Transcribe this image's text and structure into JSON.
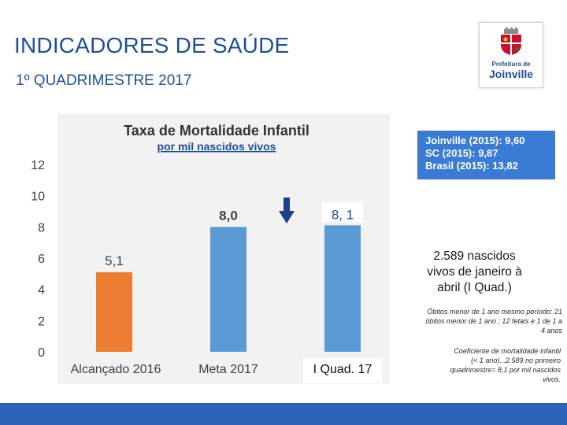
{
  "header": {
    "title": "INDICADORES DE SAÚDE",
    "subtitle": "1º QUADRIMESTRE 2017"
  },
  "logo": {
    "line1": "Prefeitura de",
    "line2": "Joinville"
  },
  "chart_data": {
    "type": "bar",
    "title": "Taxa de Mortalidade Infantil",
    "subtitle": "por mil nascidos  vivos",
    "categories": [
      "Alcançado 2016",
      "Meta 2017",
      "I Quad. 17"
    ],
    "values": [
      5.1,
      8.0,
      8.1
    ],
    "data_labels": [
      "5,1",
      "8,0",
      "8, 1"
    ],
    "bar_colors": [
      "#ed7d31",
      "#5b9bd5",
      "#5b9bd5"
    ],
    "ylim": [
      0,
      12
    ],
    "yticks": [
      0,
      2,
      4,
      6,
      8,
      10,
      12
    ],
    "grid": false,
    "annotation": "down-arrow"
  },
  "reference_box": {
    "lines": [
      "Joinville (2015): 9,60",
      "SC (2015): 9,87",
      "Brasil (2015): 13,82"
    ]
  },
  "births": {
    "number": "2.589",
    "text": " nascidos vivos de janeiro à abril (I Quad.)"
  },
  "notes": {
    "deaths": "Óbitos menor de 1 ano mesmo período: 21 óbitos menor de 1 ano ; 12 fetais e 1 de 1 a 4 anos",
    "coefficient": "Coeficiente de mortalidade infantil (< 1 ano)...2.589 no primeiro quadrimestre= 8,1 por mil nascidos vivos."
  },
  "colors": {
    "accent": "#1f4e9a",
    "orange": "#ed7d31",
    "blue_bar": "#5b9bd5",
    "footer": "#2a63b8",
    "arrow": "#1f3d8f"
  }
}
